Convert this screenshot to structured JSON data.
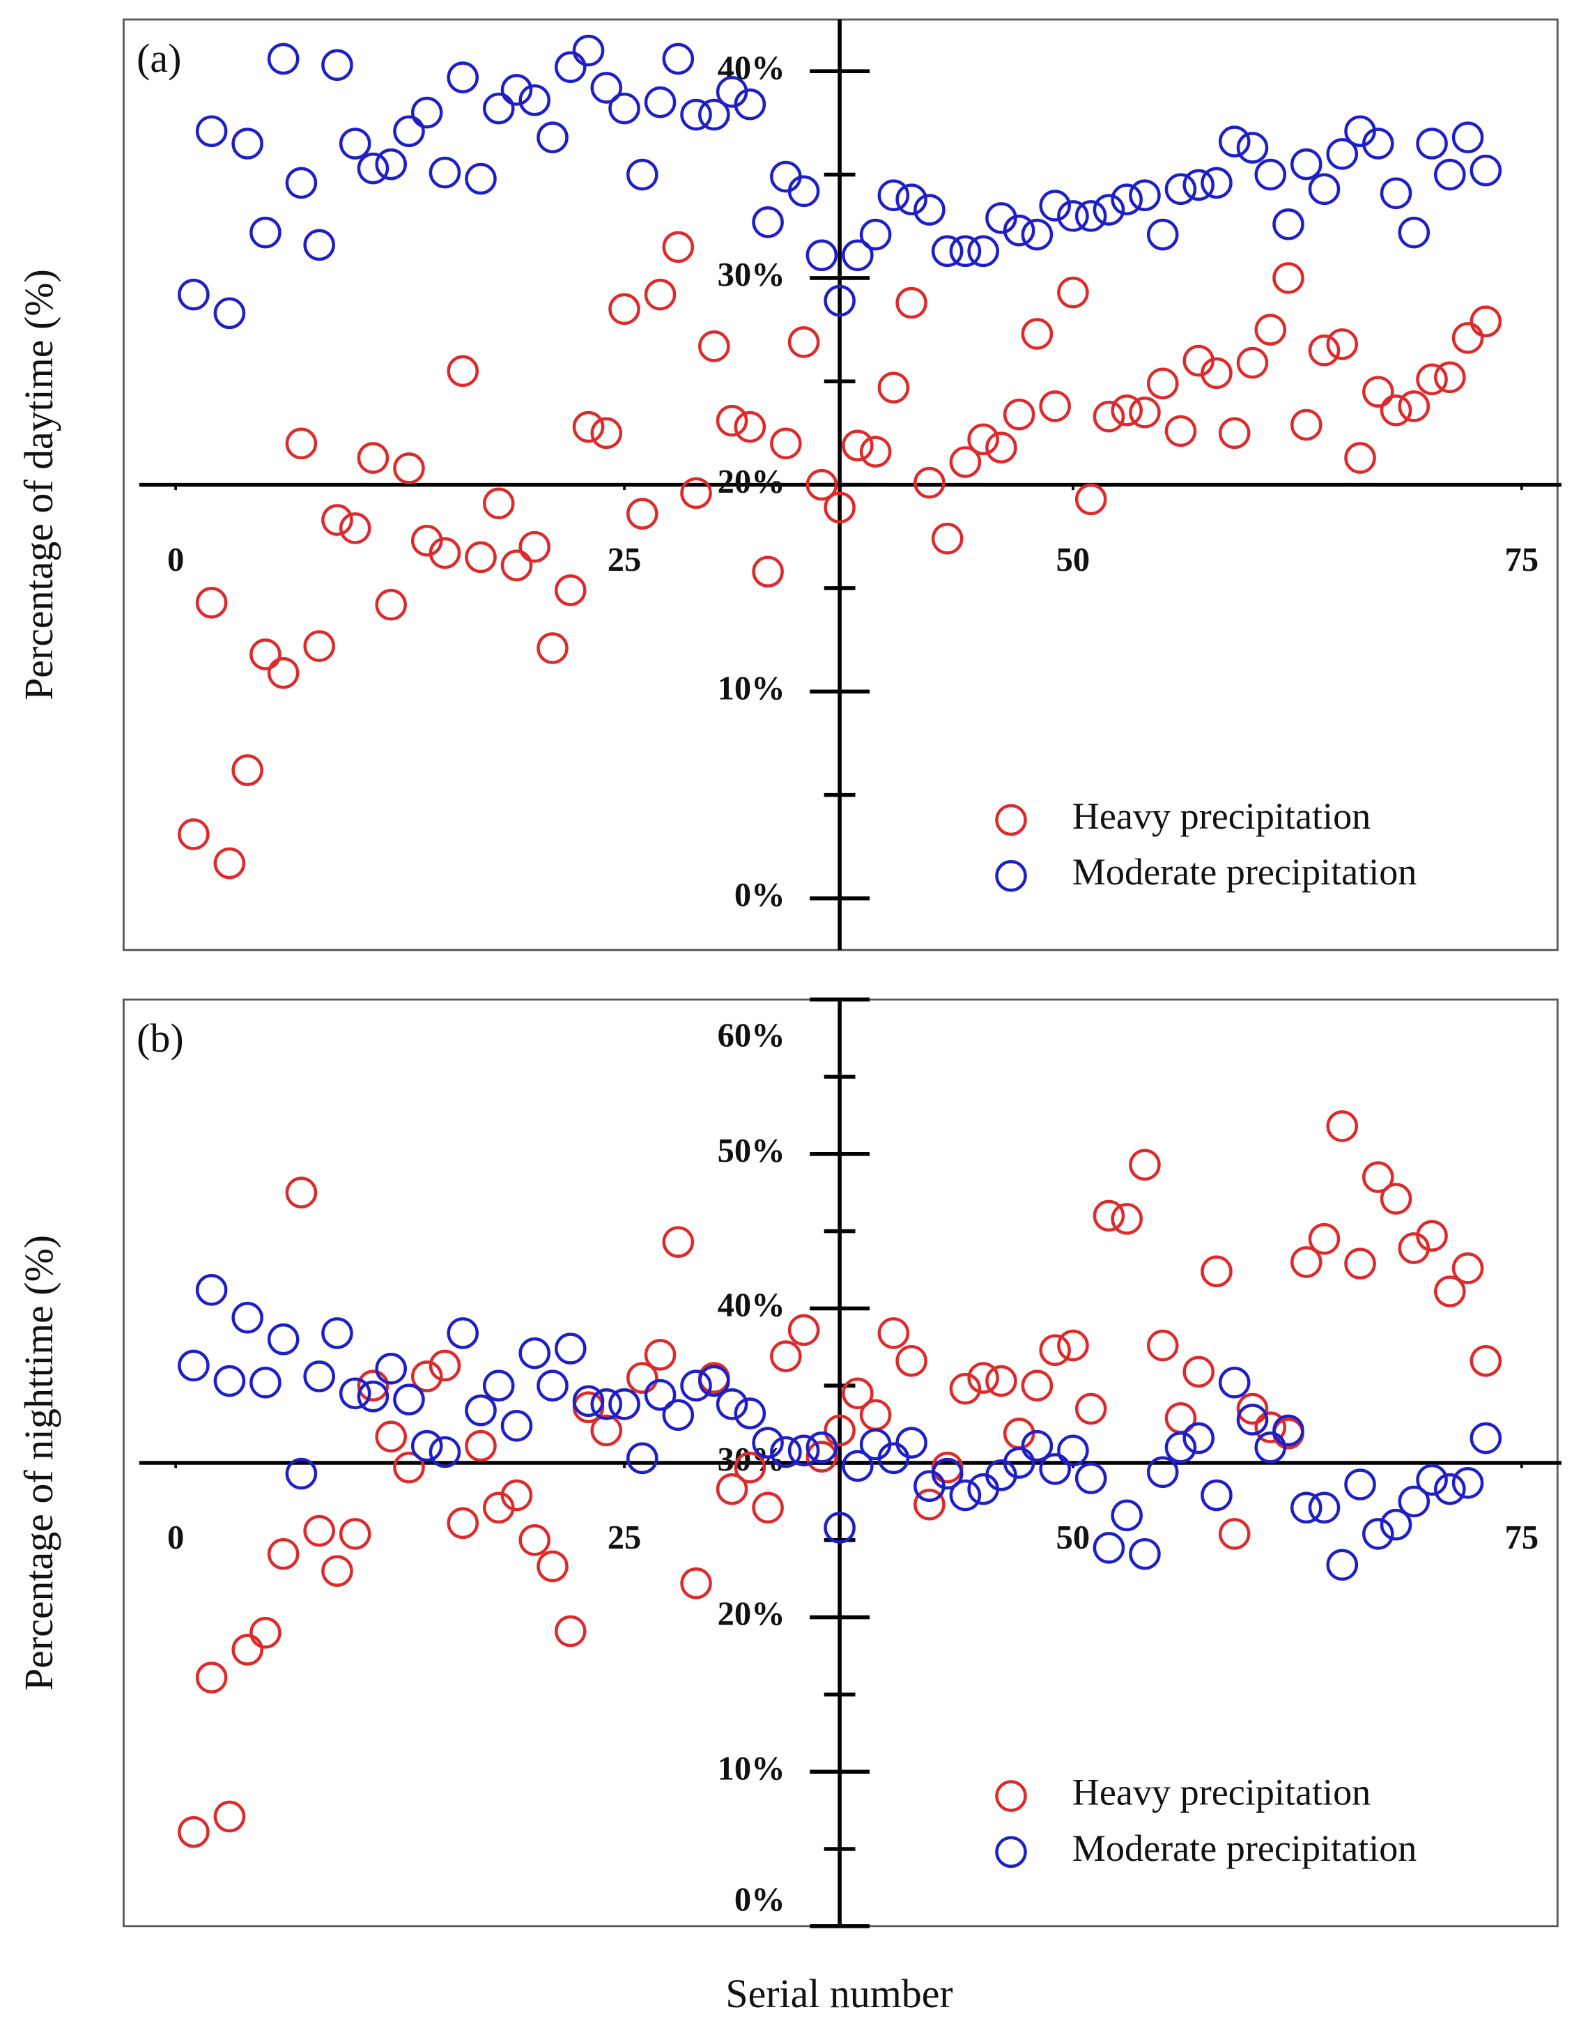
{
  "xlabel": "Serial number",
  "chart_data": [
    {
      "type": "scatter",
      "panel_label": "(a)",
      "ylabel": "Percentage of daytime (%)",
      "xlim": [
        -2.9,
        77
      ],
      "ylim": [
        -2.5,
        42.5
      ],
      "xticks": [
        0,
        25,
        50,
        75
      ],
      "yticks": [
        {
          "value": 0,
          "label": "0%"
        },
        {
          "value": 10,
          "label": "10%"
        },
        {
          "value": 20,
          "label": "20%"
        },
        {
          "value": 30,
          "label": "30%"
        },
        {
          "value": 40,
          "label": "40%"
        }
      ],
      "yminor_ticks": [
        5,
        15,
        25,
        35
      ],
      "x_axis_at": 20,
      "y_axis_at": 37,
      "legend": "lower right",
      "x": [
        1,
        2,
        3,
        4,
        5,
        6,
        7,
        8,
        9,
        10,
        11,
        12,
        13,
        14,
        15,
        16,
        17,
        18,
        19,
        20,
        21,
        22,
        23,
        24,
        25,
        26,
        27,
        28,
        29,
        30,
        31,
        32,
        33,
        34,
        35,
        36,
        37,
        38,
        39,
        40,
        41,
        42,
        43,
        44,
        45,
        46,
        47,
        48,
        49,
        50,
        51,
        52,
        53,
        54,
        55,
        56,
        57,
        58,
        59,
        60,
        61,
        62,
        63,
        64,
        65,
        66,
        67,
        68,
        69,
        70,
        71,
        72,
        73
      ],
      "series": [
        {
          "name": "Heavy precipitation",
          "color": "#dd2a2a",
          "values": [
            3.1,
            14.3,
            1.7,
            6.2,
            11.8,
            10.9,
            22.0,
            12.2,
            18.3,
            17.9,
            21.3,
            14.2,
            20.8,
            17.3,
            16.7,
            25.5,
            16.5,
            19.1,
            16.1,
            17.0,
            12.1,
            14.9,
            22.8,
            22.5,
            28.5,
            18.6,
            29.2,
            31.5,
            19.6,
            26.7,
            23.1,
            22.8,
            15.8,
            22.0,
            26.9,
            20.0,
            18.9,
            21.9,
            21.6,
            24.7,
            28.8,
            20.1,
            17.4,
            21.1,
            22.2,
            21.8,
            23.4,
            27.3,
            23.8,
            29.3,
            19.3,
            23.3,
            23.6,
            23.5,
            24.9,
            22.6,
            26.0,
            25.4,
            22.5,
            25.9,
            27.5,
            30.0,
            22.9,
            26.5,
            26.8,
            21.3,
            24.5,
            23.6,
            23.8,
            25.1,
            25.2,
            27.1,
            27.9
          ]
        },
        {
          "name": "Moderate precipitation",
          "color": "#1f1fc8",
          "values": [
            29.2,
            37.1,
            28.3,
            36.5,
            32.2,
            40.6,
            34.6,
            31.6,
            40.3,
            36.5,
            35.3,
            35.5,
            37.1,
            38.0,
            35.1,
            39.7,
            34.8,
            38.2,
            39.1,
            38.6,
            36.8,
            40.2,
            41.0,
            39.2,
            38.2,
            35.0,
            38.5,
            40.6,
            37.9,
            37.9,
            39.0,
            38.4,
            32.7,
            34.9,
            34.2,
            31.1,
            28.9,
            31.1,
            32.1,
            34.0,
            33.8,
            33.3,
            31.3,
            31.3,
            31.3,
            32.9,
            32.3,
            32.1,
            33.5,
            33.0,
            33.0,
            33.3,
            33.8,
            34.0,
            32.1,
            34.3,
            34.5,
            34.6,
            36.6,
            36.3,
            35.0,
            32.6,
            35.5,
            34.3,
            36.0,
            37.1,
            36.5,
            34.1,
            32.2,
            36.5,
            35.0,
            36.8,
            35.2
          ]
        }
      ]
    },
    {
      "type": "scatter",
      "panel_label": "(b)",
      "ylabel": "Percentage of nighttime (%)",
      "xlim": [
        -2.9,
        77
      ],
      "ylim": [
        0,
        60
      ],
      "xticks": [
        0,
        25,
        50,
        75
      ],
      "yticks": [
        {
          "value": 0,
          "label": "0%"
        },
        {
          "value": 10,
          "label": "10%"
        },
        {
          "value": 20,
          "label": "20%"
        },
        {
          "value": 30,
          "label": "30%"
        },
        {
          "value": 40,
          "label": "40%"
        },
        {
          "value": 50,
          "label": "50%"
        },
        {
          "value": 60,
          "label": "60%"
        }
      ],
      "yminor_ticks": [
        5,
        15,
        25,
        35,
        45,
        55
      ],
      "x_axis_at": 30,
      "y_axis_at": 37,
      "legend": "lower right",
      "x": [
        1,
        2,
        3,
        4,
        5,
        6,
        7,
        8,
        9,
        10,
        11,
        12,
        13,
        14,
        15,
        16,
        17,
        18,
        19,
        20,
        21,
        22,
        23,
        24,
        25,
        26,
        27,
        28,
        29,
        30,
        31,
        32,
        33,
        34,
        35,
        36,
        37,
        38,
        39,
        40,
        41,
        42,
        43,
        44,
        45,
        46,
        47,
        48,
        49,
        50,
        51,
        52,
        53,
        54,
        55,
        56,
        57,
        58,
        59,
        60,
        61,
        62,
        63,
        64,
        65,
        66,
        67,
        68,
        69,
        70,
        71,
        72,
        73
      ],
      "series": [
        {
          "name": "Heavy precipitation",
          "color": "#dd2a2a",
          "values": [
            6.1,
            16.1,
            7.1,
            17.9,
            19.0,
            24.1,
            47.5,
            25.6,
            23.0,
            25.4,
            35.0,
            31.7,
            29.7,
            35.6,
            36.3,
            26.1,
            31.1,
            27.1,
            27.9,
            25.0,
            23.3,
            19.1,
            33.6,
            32.1,
            33.8,
            35.5,
            37.0,
            44.3,
            22.2,
            35.5,
            28.3,
            29.7,
            27.1,
            36.9,
            38.6,
            30.4,
            32.1,
            34.5,
            33.1,
            38.4,
            36.6,
            27.3,
            29.7,
            34.8,
            35.5,
            35.3,
            31.9,
            35.0,
            37.3,
            37.6,
            33.5,
            46.0,
            45.8,
            49.3,
            37.6,
            32.9,
            35.9,
            42.4,
            25.4,
            33.5,
            32.3,
            31.9,
            43.0,
            44.5,
            51.8,
            42.9,
            48.5,
            47.1,
            43.9,
            44.7,
            41.1,
            42.6,
            36.6
          ]
        },
        {
          "name": "Moderate precipitation",
          "color": "#1f1fc8",
          "values": [
            36.3,
            41.2,
            35.3,
            39.4,
            35.2,
            38.0,
            29.3,
            35.6,
            38.4,
            34.5,
            34.3,
            36.1,
            34.1,
            31.1,
            30.7,
            38.4,
            33.4,
            35.0,
            32.4,
            37.1,
            35.0,
            37.4,
            34.0,
            33.8,
            33.8,
            30.3,
            34.4,
            33.1,
            35.0,
            35.3,
            33.8,
            33.2,
            31.3,
            30.7,
            30.8,
            31.0,
            25.8,
            29.8,
            31.2,
            30.3,
            31.3,
            28.5,
            29.3,
            27.9,
            28.3,
            29.2,
            30.0,
            31.1,
            29.6,
            30.8,
            29.0,
            24.5,
            26.6,
            24.1,
            29.4,
            31.0,
            31.6,
            27.9,
            35.2,
            32.8,
            31.0,
            32.1,
            27.1,
            27.1,
            23.4,
            28.6,
            25.4,
            26.0,
            27.5,
            28.9,
            28.3,
            28.7,
            31.6
          ]
        }
      ]
    }
  ]
}
